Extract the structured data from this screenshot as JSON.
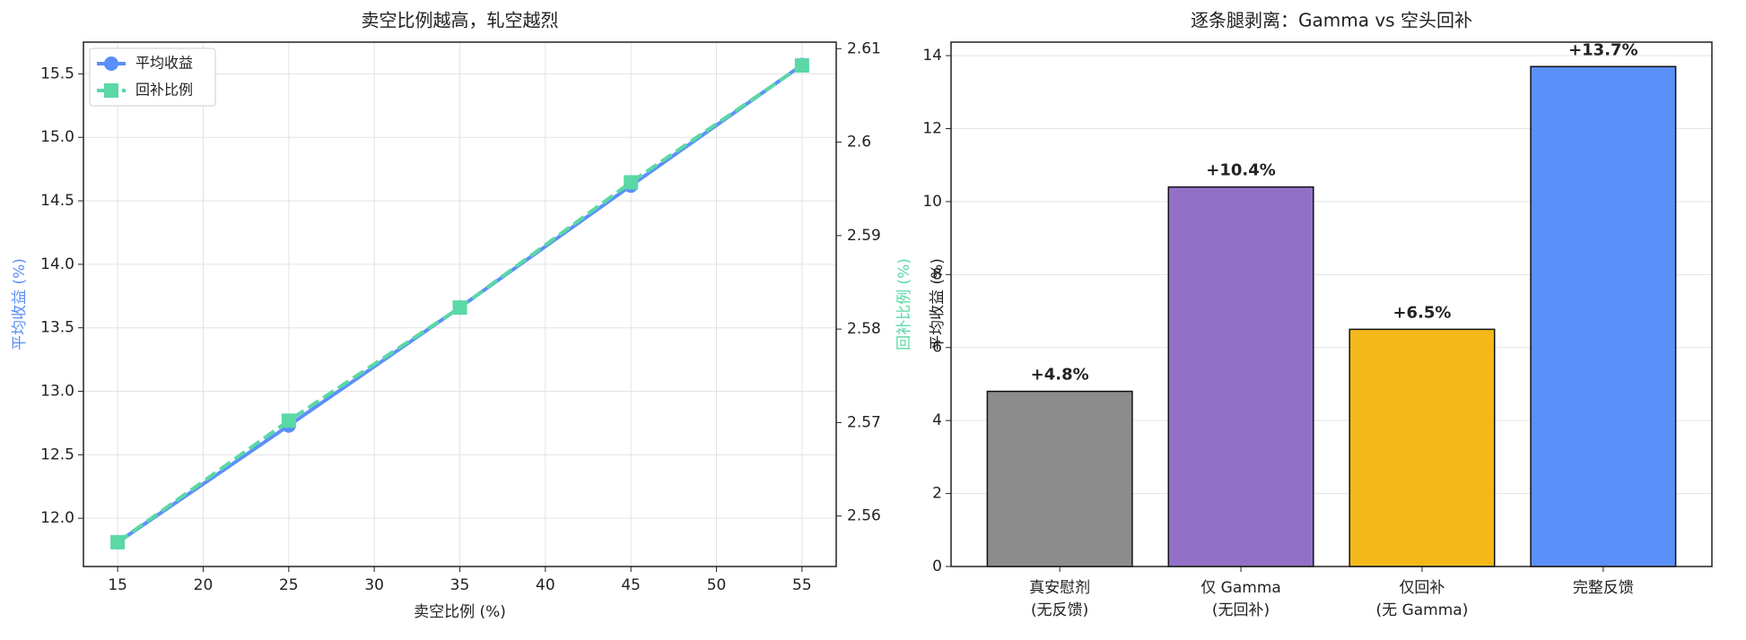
{
  "chart_data": [
    {
      "type": "line",
      "title": "卖空比例越高，轧空越烈",
      "xlabel": "卖空比例 (%)",
      "ylabel": "平均收益 (%)",
      "y2label": "回补比例 (%)",
      "x": [
        15,
        25,
        35,
        45,
        55
      ],
      "series": [
        {
          "name": "平均收益",
          "color": "#5b8ff9",
          "marker": "circle",
          "linestyle": "solid",
          "values": [
            11.81,
            12.73,
            13.66,
            14.62,
            15.57
          ]
        },
        {
          "name": "回补比例",
          "color": "#5ad8a6",
          "marker": "square",
          "linestyle": "dashed",
          "axis": "y2",
          "values": [
            2.5572,
            2.5702,
            2.5823,
            2.5957,
            2.6082
          ]
        }
      ],
      "xlim": [
        13,
        57
      ],
      "xticks": [
        15,
        20,
        25,
        30,
        35,
        40,
        45,
        50,
        55
      ],
      "ylim": [
        11.62,
        15.75
      ],
      "yticks": [
        {
          "value": 12,
          "label": "12.0"
        },
        12.5,
        {
          "value": 13,
          "label": "13.0"
        },
        13.5,
        {
          "value": 14,
          "label": "14.0"
        },
        14.5,
        {
          "value": 15,
          "label": "15.0"
        },
        15.5
      ],
      "y2lim": [
        2.5546,
        2.6107
      ],
      "y2ticks": [
        2.56,
        2.57,
        2.58,
        2.59,
        2.6,
        2.61
      ],
      "grid": true,
      "legend": "upper left"
    },
    {
      "type": "bar",
      "title": "逐条腿剥离：Gamma vs 空头回补",
      "ylabel": "平均收益 (%)",
      "categories": [
        "真安慰剂\n(无反馈)",
        "仅 Gamma\n(无回补)",
        "仅回补\n(无 Gamma)",
        "完整反馈"
      ],
      "values": [
        4.8,
        10.4,
        6.5,
        13.7
      ],
      "value_labels": [
        "+4.8%",
        "+10.4%",
        "+6.5%",
        "+13.7%"
      ],
      "colors": [
        "#8c8c8c",
        "#9370c8",
        "#f4b918",
        "#5b8ff9"
      ],
      "ylim": [
        0,
        14.37
      ],
      "yticks": [
        0,
        2,
        4,
        6,
        8,
        10,
        12,
        14
      ],
      "grid": true
    }
  ]
}
